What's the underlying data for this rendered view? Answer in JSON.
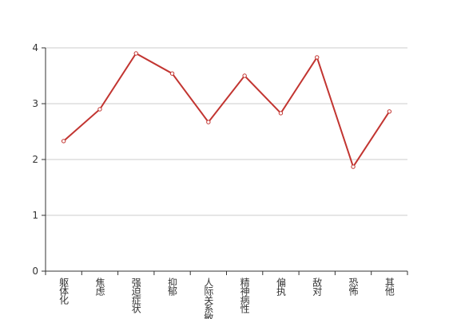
{
  "chart_data": {
    "type": "line",
    "categories": [
      "躯体化",
      "焦虑",
      "强迫症状",
      "抑郁",
      "人际关系敏感",
      "精神病性",
      "偏执",
      "敌对",
      "恐怖",
      "其他"
    ],
    "series": [
      {
        "color": "#c23531",
        "values": [
          2.33,
          2.9,
          3.9,
          3.54,
          2.67,
          3.5,
          2.83,
          3.83,
          1.87,
          2.86
        ]
      }
    ],
    "ylim": [
      0,
      4
    ],
    "yticks": [
      0,
      1,
      2,
      3,
      4
    ],
    "grid": true
  }
}
